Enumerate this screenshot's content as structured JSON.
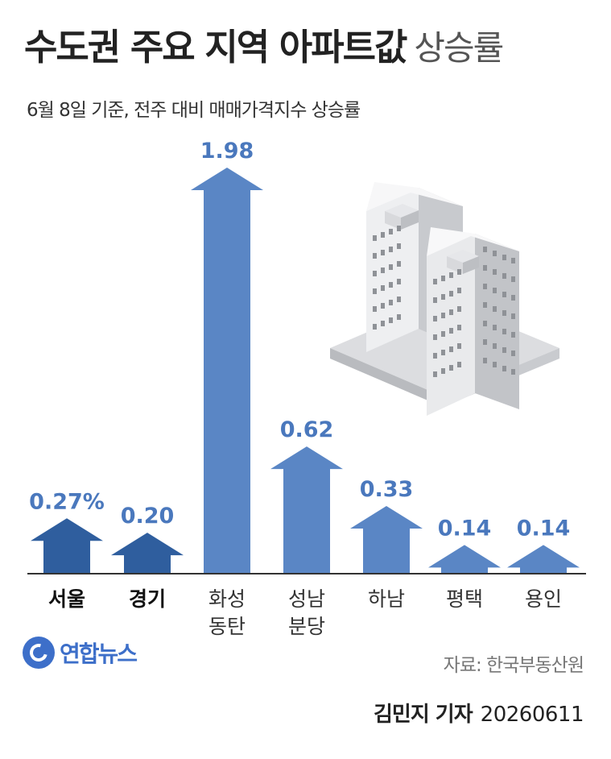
{
  "header": {
    "title_bold": "수도권 주요 지역 아파트값",
    "title_light": "상승률",
    "subtitle": "6월 8일 기준, 전주 대비 매매가격지수 상승률"
  },
  "chart_data": {
    "type": "bar",
    "categories": [
      "서울",
      "경기",
      "화성\n동탄",
      "성남\n분당",
      "하남",
      "평택",
      "용인"
    ],
    "values": [
      0.27,
      0.2,
      1.98,
      0.62,
      0.33,
      0.14,
      0.14
    ],
    "value_labels": [
      "0.27%",
      "0.20",
      "1.98",
      "0.62",
      "0.33",
      "0.14",
      "0.14"
    ],
    "highlighted": [
      true,
      true,
      false,
      false,
      false,
      false,
      false
    ],
    "ylim": [
      0,
      1.98
    ],
    "colors": {
      "highlight": "#2f5e9e",
      "bar": "#5a86c5",
      "label": "#4a78bd",
      "baseline": "#333333"
    }
  },
  "footer": {
    "logo_text": "연합뉴스",
    "source": "자료: 한국부동산원",
    "reporter": "김민지 기자",
    "date": "20260611"
  }
}
